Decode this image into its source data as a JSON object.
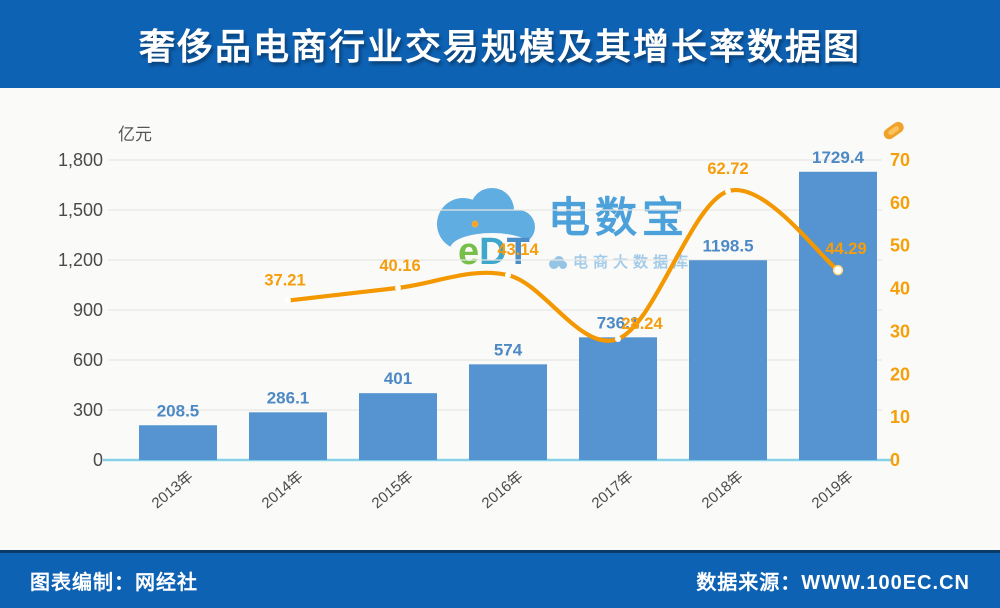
{
  "header": {
    "title": "奢侈品电商行业交易规模及其增长率数据图"
  },
  "footer": {
    "left": "图表编制：网经社",
    "right": "数据来源：WWW.100EC.CN"
  },
  "watermark": {
    "logo_e": "e",
    "logo_d": "D",
    "logo_t": "T",
    "brand": "电数宝",
    "subtitle": "电商大数据库"
  },
  "chart_data": {
    "type": "bar",
    "title": "奢侈品电商行业交易规模及其增长率数据图",
    "categories": [
      "2013年",
      "2014年",
      "2015年",
      "2016年",
      "2017年",
      "2018年",
      "2019年"
    ],
    "series": [
      {
        "name": "交易规模",
        "unit": "亿元",
        "type": "bar",
        "values": [
          208.5,
          286.1,
          401,
          574,
          736.1,
          1198.5,
          1729.4
        ]
      },
      {
        "name": "增长率",
        "unit": "%",
        "type": "line",
        "values": [
          null,
          37.21,
          40.16,
          43.14,
          28.24,
          62.72,
          44.29
        ]
      }
    ],
    "left_axis": {
      "title": "亿元",
      "tick_values": [
        0,
        300,
        600,
        900,
        1200,
        1500,
        1800
      ],
      "tick_labels": [
        "0",
        "300",
        "600",
        "900",
        "1,200",
        "1,500",
        "1,800"
      ],
      "max": 1800
    },
    "right_axis": {
      "tick_values": [
        0,
        10,
        20,
        30,
        40,
        50,
        60,
        70
      ],
      "max": 70
    },
    "grid": true,
    "legend": "none",
    "colors": {
      "bar": "#5594d0",
      "bar_label": "#4d89c5",
      "line": "#f39800",
      "line_label": "#f59d0c",
      "axis_text": "#4a4a4a",
      "right_axis_text": "#f5a00a",
      "gridline": "#e7e7e4",
      "axis_line": "#86d0e8",
      "header_blue": "#0e62b4"
    }
  }
}
